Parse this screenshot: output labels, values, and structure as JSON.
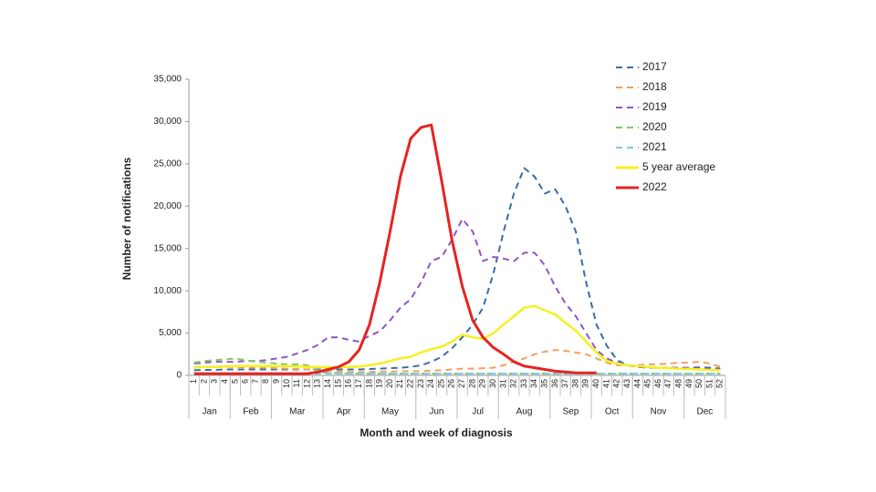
{
  "chart_data": {
    "type": "line",
    "y_label": "Number of notifications",
    "x_label": "Month and week of diagnosis",
    "categories": [
      "1",
      "2",
      "3",
      "4",
      "5",
      "6",
      "7",
      "8",
      "9",
      "10",
      "11",
      "12",
      "13",
      "14",
      "15",
      "16",
      "17",
      "18",
      "19",
      "20",
      "21",
      "22",
      "23",
      "24",
      "25",
      "26",
      "27",
      "28",
      "29",
      "30",
      "31",
      "32",
      "33",
      "34",
      "35",
      "36",
      "37",
      "38",
      "39",
      "40",
      "41",
      "42",
      "43",
      "44",
      "45",
      "46",
      "47",
      "48",
      "49",
      "50",
      "51",
      "52"
    ],
    "x_groups": [
      {
        "label": "Jan",
        "from": "1",
        "to": "4"
      },
      {
        "label": "Feb",
        "from": "5",
        "to": "8"
      },
      {
        "label": "Mar",
        "from": "9",
        "to": "13"
      },
      {
        "label": "Apr",
        "from": "14",
        "to": "17"
      },
      {
        "label": "May",
        "from": "18",
        "to": "22"
      },
      {
        "label": "Jun",
        "from": "23",
        "to": "26"
      },
      {
        "label": "Jul",
        "from": "27",
        "to": "30"
      },
      {
        "label": "Aug",
        "from": "31",
        "to": "35"
      },
      {
        "label": "Sep",
        "from": "36",
        "to": "39"
      },
      {
        "label": "Oct",
        "from": "40",
        "to": "43"
      },
      {
        "label": "Nov",
        "from": "44",
        "to": "48"
      },
      {
        "label": "Dec",
        "from": "49",
        "to": "52"
      }
    ],
    "ylim": [
      0,
      35000
    ],
    "yticks": [
      0,
      {
        "value": 5000,
        "label": "5,000"
      },
      {
        "value": 10000,
        "label": "10,000"
      },
      {
        "value": 15000,
        "label": "15,000"
      },
      {
        "value": 20000,
        "label": "20,000"
      },
      {
        "value": 25000,
        "label": "25,000"
      },
      {
        "value": 30000,
        "label": "30,000"
      },
      {
        "value": 35000,
        "label": "35,000"
      }
    ],
    "legend": "top-right",
    "series": [
      {
        "name": "2017",
        "color": "#3b6ba8",
        "dashed": true,
        "values": [
          600,
          650,
          650,
          700,
          700,
          700,
          700,
          700,
          700,
          700,
          700,
          700,
          700,
          700,
          700,
          700,
          700,
          750,
          800,
          850,
          900,
          1000,
          1200,
          1600,
          2200,
          3200,
          4500,
          6000,
          8000,
          12000,
          17000,
          21500,
          24500,
          23500,
          21500,
          22000,
          20000,
          17000,
          11000,
          6000,
          3500,
          1800,
          1200,
          1000,
          900,
          900,
          900,
          900,
          900,
          950,
          900,
          800
        ]
      },
      {
        "name": "2018",
        "color": "#f0a060",
        "dashed": true,
        "values": [
          1000,
          1000,
          1000,
          1000,
          1000,
          950,
          900,
          900,
          850,
          800,
          750,
          700,
          600,
          500,
          450,
          400,
          400,
          400,
          450,
          450,
          500,
          500,
          500,
          550,
          600,
          700,
          800,
          800,
          850,
          900,
          1200,
          1600,
          2000,
          2500,
          2800,
          3000,
          2900,
          2700,
          2500,
          2000,
          1500,
          1200,
          1200,
          1200,
          1300,
          1300,
          1400,
          1500,
          1500,
          1600,
          1400,
          1000
        ]
      },
      {
        "name": "2019",
        "color": "#8e55c8",
        "dashed": true,
        "values": [
          1400,
          1500,
          1600,
          1600,
          1600,
          1700,
          1700,
          1800,
          2000,
          2200,
          2600,
          3000,
          3600,
          4500,
          4500,
          4200,
          4000,
          4700,
          5200,
          6500,
          8000,
          9000,
          11000,
          13500,
          14000,
          16000,
          18500,
          17000,
          13500,
          14000,
          13800,
          13500,
          14500,
          14500,
          13000,
          10500,
          8500,
          7000,
          5000,
          3000,
          2000,
          1500,
          1200,
          1000,
          1000,
          900,
          900,
          900,
          900,
          800,
          800,
          700
        ]
      },
      {
        "name": "2020",
        "color": "#80c860",
        "dashed": true,
        "values": [
          1500,
          1700,
          1800,
          1900,
          2000,
          1800,
          1600,
          1500,
          1400,
          1300,
          1300,
          1200,
          400,
          300,
          250,
          200,
          200,
          200,
          200,
          200,
          200,
          200,
          200,
          200,
          200,
          200,
          200,
          200,
          200,
          200,
          200,
          200,
          200,
          200,
          200,
          200,
          200,
          200,
          200,
          200,
          200,
          200,
          200,
          200,
          200,
          200,
          200,
          200,
          200,
          200,
          200,
          200
        ]
      },
      {
        "name": "2021",
        "color": "#80c8ea",
        "dashed": true,
        "values": [
          200,
          200,
          200,
          200,
          200,
          200,
          200,
          200,
          200,
          200,
          200,
          200,
          200,
          200,
          200,
          200,
          200,
          200,
          200,
          200,
          200,
          200,
          200,
          200,
          200,
          200,
          200,
          200,
          200,
          200,
          200,
          200,
          200,
          200,
          200,
          200,
          200,
          200,
          200,
          200,
          200,
          200,
          200,
          200,
          200,
          200,
          200,
          200,
          200,
          200,
          200,
          200
        ]
      },
      {
        "name": "5 year average",
        "color": "#f5f020",
        "dashed": false,
        "values": [
          900,
          1000,
          1000,
          1050,
          1100,
          1100,
          1100,
          1100,
          1100,
          1100,
          1050,
          1000,
          1000,
          950,
          950,
          1000,
          1050,
          1200,
          1400,
          1700,
          2000,
          2200,
          2700,
          3100,
          3400,
          4000,
          4800,
          4500,
          4300,
          5000,
          6000,
          7000,
          8000,
          8200,
          7700,
          7200,
          6200,
          5300,
          4000,
          2700,
          1700,
          1400,
          1200,
          1100,
          1000,
          900,
          850,
          800,
          750,
          700,
          650,
          600
        ]
      },
      {
        "name": "2022",
        "color": "#e52420",
        "dashed": false,
        "values": [
          200,
          200,
          200,
          200,
          200,
          200,
          200,
          200,
          200,
          200,
          200,
          200,
          400,
          700,
          1000,
          1600,
          3000,
          6000,
          11000,
          17000,
          23500,
          28000,
          29300,
          29600,
          23000,
          16000,
          10500,
          6500,
          4500,
          3300,
          2500,
          1600,
          1100,
          900,
          700,
          500,
          400,
          300,
          300,
          300,
          null,
          null,
          null,
          null,
          null,
          null,
          null,
          null,
          null,
          null,
          null,
          null
        ]
      }
    ]
  }
}
